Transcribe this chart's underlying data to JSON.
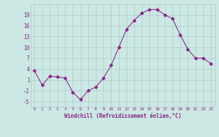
{
  "x": [
    0,
    1,
    2,
    3,
    4,
    5,
    6,
    7,
    8,
    9,
    10,
    11,
    12,
    13,
    14,
    15,
    16,
    17,
    18,
    19,
    20,
    21,
    22,
    23
  ],
  "y": [
    3.5,
    -0.5,
    2.0,
    1.8,
    1.5,
    -2.5,
    -4.5,
    -2.0,
    -1.0,
    1.5,
    5.0,
    10.0,
    15.0,
    17.5,
    19.5,
    20.5,
    20.5,
    19.0,
    18.0,
    13.5,
    9.5,
    7.0,
    7.0,
    5.5
  ],
  "line_color": "#882288",
  "marker": "D",
  "marker_size": 2.5,
  "background_color": "#cce8e4",
  "grid_color": "#aac8c4",
  "tick_color": "#882288",
  "label_color": "#882288",
  "xlabel": "Windchill (Refroidissement éolien,°C)",
  "yticks": [
    -5,
    -2,
    1,
    4,
    7,
    10,
    13,
    16,
    19
  ],
  "xticks": [
    0,
    1,
    2,
    3,
    4,
    5,
    6,
    7,
    8,
    9,
    10,
    11,
    12,
    13,
    14,
    15,
    16,
    17,
    18,
    19,
    20,
    21,
    22,
    23
  ],
  "xlim": [
    -0.5,
    23.5
  ],
  "ylim": [
    -6.5,
    22
  ]
}
